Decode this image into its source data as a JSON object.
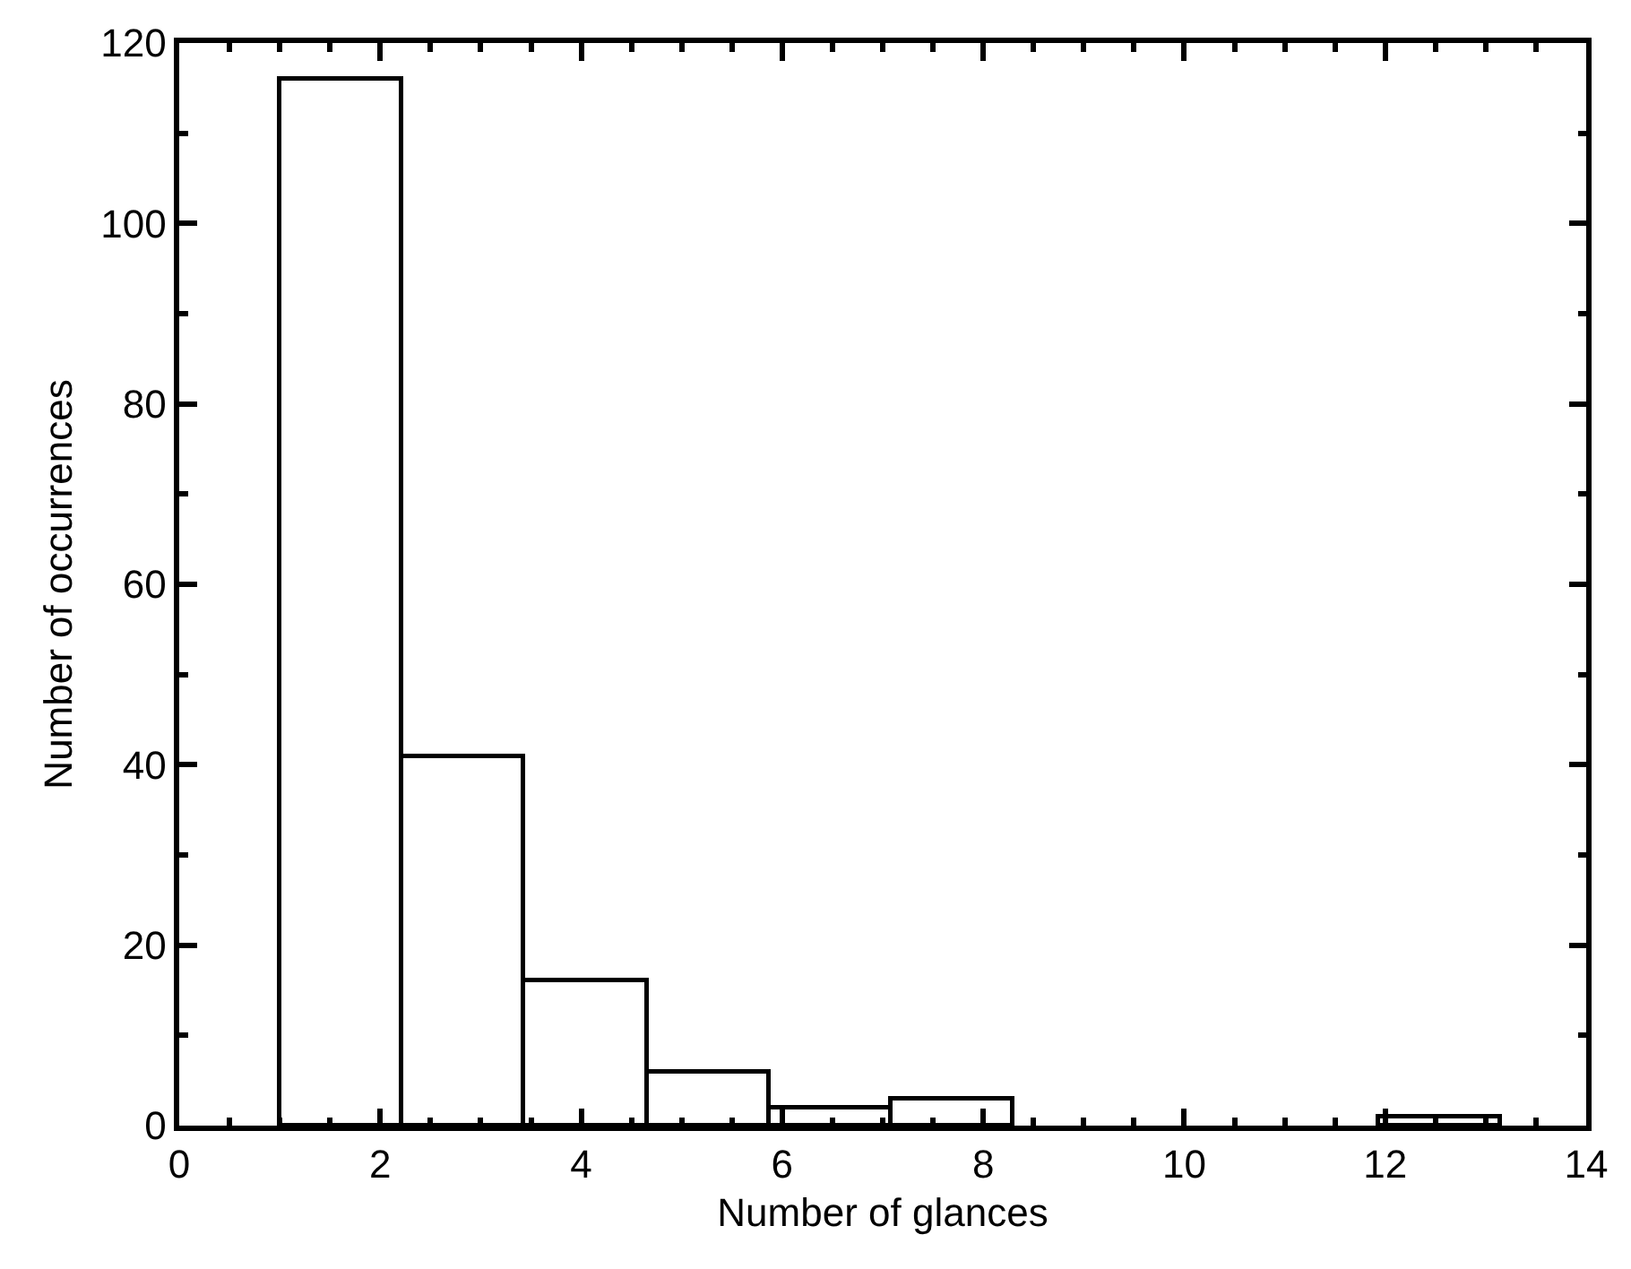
{
  "chart_data": {
    "type": "histogram",
    "xlabel": "Number of glances",
    "ylabel": "Number of occurrences",
    "bins": [
      1,
      2.22,
      3.43,
      4.65,
      5.86,
      7.08,
      8.29,
      11.94,
      13.15
    ],
    "values": [
      116,
      41,
      16,
      6,
      2,
      3,
      0,
      1
    ],
    "color": "#ffffff",
    "xlim": [
      0,
      14
    ],
    "xticks": [
      0,
      2,
      4,
      6,
      8,
      10,
      12,
      14
    ],
    "ylim": [
      0,
      120
    ],
    "yticks": [
      0,
      20,
      40,
      60,
      80,
      100,
      120
    ]
  }
}
